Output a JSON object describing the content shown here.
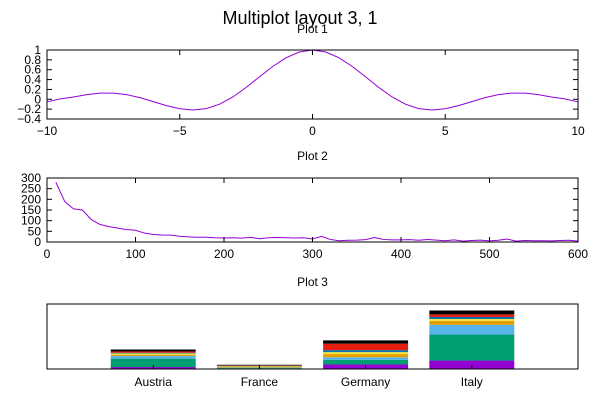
{
  "figure": {
    "title": "Multiplot layout 3, 1",
    "width": 600,
    "height": 400
  },
  "chart_data": [
    {
      "type": "line",
      "title": "Plot 1",
      "xlabel": "",
      "ylabel": "",
      "xlim": [
        -10,
        10
      ],
      "ylim": [
        -0.4,
        1
      ],
      "xticks": [
        -10,
        -5,
        0,
        5,
        10
      ],
      "xtick_labels": [
        "−10",
        "−5",
        "0",
        "5",
        "10"
      ],
      "yticks": [
        -0.4,
        -0.2,
        0,
        0.2,
        0.4,
        0.6,
        0.8,
        1
      ],
      "ytick_labels": [
        "−0.4",
        "−0.2",
        "0",
        "0.2",
        "0.4",
        "0.6",
        "0.8",
        "1"
      ],
      "series": [
        {
          "color": "#9400d3",
          "x": [
            -10,
            -9.5,
            -9,
            -8.5,
            -8,
            -7.5,
            -7,
            -6.5,
            -6,
            -5.5,
            -5,
            -4.5,
            -4,
            -3.5,
            -3,
            -2.5,
            -2,
            -1.5,
            -1,
            -0.5,
            0,
            0.5,
            1,
            1.5,
            2,
            2.5,
            3,
            3.5,
            4,
            4.5,
            5,
            5.5,
            6,
            6.5,
            7,
            7.5,
            8,
            8.5,
            9,
            9.5,
            10
          ],
          "y": [
            -0.054,
            0.008,
            0.046,
            0.094,
            0.124,
            0.125,
            0.094,
            0.033,
            -0.047,
            -0.128,
            -0.192,
            -0.217,
            -0.189,
            -0.1,
            0.047,
            0.239,
            0.455,
            0.665,
            0.841,
            0.959,
            1,
            0.959,
            0.841,
            0.665,
            0.455,
            0.239,
            0.047,
            -0.1,
            -0.189,
            -0.217,
            -0.192,
            -0.128,
            -0.047,
            0.033,
            0.094,
            0.125,
            0.124,
            0.094,
            0.046,
            0.008,
            -0.054
          ]
        }
      ],
      "grid": false
    },
    {
      "type": "line",
      "title": "Plot 2",
      "xlabel": "",
      "ylabel": "",
      "xlim": [
        0,
        600
      ],
      "ylim": [
        0,
        300
      ],
      "xticks": [
        0,
        100,
        200,
        300,
        400,
        500,
        600
      ],
      "xtick_labels": [
        "0",
        "100",
        "200",
        "300",
        "400",
        "500",
        "600"
      ],
      "yticks": [
        0,
        50,
        100,
        150,
        200,
        250,
        300
      ],
      "ytick_labels": [
        "0",
        "50",
        "100",
        "150",
        "200",
        "250",
        "300"
      ],
      "series": [
        {
          "color": "#9400d3",
          "x": [
            10,
            20,
            30,
            40,
            50,
            60,
            70,
            80,
            90,
            100,
            110,
            120,
            130,
            140,
            150,
            160,
            170,
            180,
            190,
            200,
            210,
            220,
            230,
            240,
            250,
            260,
            270,
            280,
            290,
            300,
            310,
            320,
            330,
            340,
            350,
            360,
            370,
            380,
            390,
            400,
            410,
            420,
            430,
            440,
            450,
            460,
            470,
            480,
            490,
            500,
            510,
            520,
            530,
            540,
            550,
            560,
            570,
            580,
            590,
            600
          ],
          "y": [
            280,
            190,
            155,
            150,
            105,
            82,
            72,
            65,
            58,
            55,
            42,
            35,
            33,
            32,
            27,
            24,
            22,
            22,
            20,
            19,
            20,
            18,
            22,
            15,
            20,
            21,
            20,
            19,
            20,
            14,
            26,
            12,
            6,
            8,
            9,
            11,
            21,
            12,
            10,
            10,
            11,
            8,
            12,
            9,
            6,
            10,
            4,
            7,
            9,
            5,
            8,
            14,
            4,
            7,
            6,
            6,
            5,
            7,
            8,
            4
          ]
        }
      ],
      "grid": false
    },
    {
      "type": "bar",
      "stacked": true,
      "title": "Plot 3",
      "xlabel": "",
      "ylabel": "",
      "ylim": [
        0,
        100
      ],
      "categories": [
        "Austria",
        "France",
        "Germany",
        "Italy"
      ],
      "series": [
        {
          "color": "#9400d3",
          "values": [
            3,
            1,
            7,
            13
          ]
        },
        {
          "color": "#009e73",
          "values": [
            13,
            1,
            7,
            40
          ]
        },
        {
          "color": "#56b4e9",
          "values": [
            4,
            0.5,
            4,
            15
          ]
        },
        {
          "color": "#e69f00",
          "values": [
            2,
            1.5,
            5,
            6
          ]
        },
        {
          "color": "#f0e442",
          "values": [
            2,
            0.5,
            3,
            3
          ]
        },
        {
          "color": "#0072b2",
          "values": [
            1,
            0.5,
            3,
            3
          ]
        },
        {
          "color": "#e51e10",
          "values": [
            2,
            0.5,
            10,
            4
          ]
        },
        {
          "color": "#000000",
          "values": [
            3,
            1,
            5,
            6
          ]
        }
      ],
      "grid": false
    }
  ]
}
